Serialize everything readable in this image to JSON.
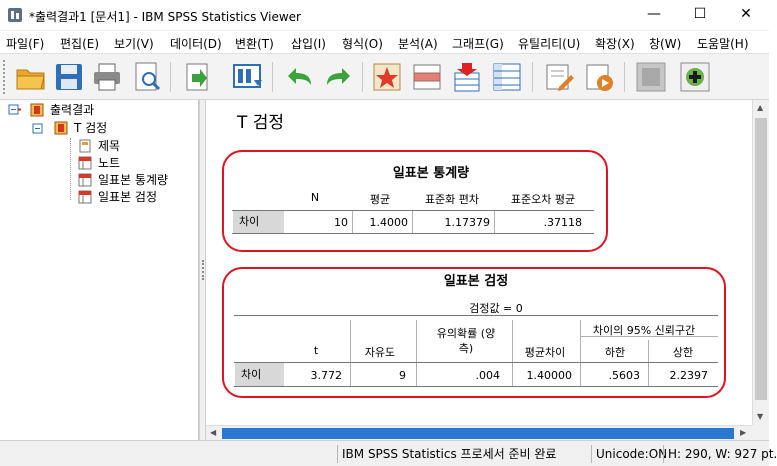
{
  "window": {
    "title": "*출력결과1 [문서1] - IBM SPSS Statistics Viewer",
    "minimize": "—",
    "maximize": "☐",
    "close": "✕"
  },
  "menu": [
    "파일(F)",
    "편집(E)",
    "보기(V)",
    "데이터(D)",
    "변환(T)",
    "삽입(I)",
    "형식(O)",
    "분석(A)",
    "그래프(G)",
    "유틸리티(U)",
    "확장(X)",
    "창(W)",
    "도움말(H)"
  ],
  "toolbar": {
    "icons": [
      "open-folder-icon",
      "save-icon",
      "print-icon",
      "print-preview-icon",
      "export-icon",
      "go-to-data-icon",
      "undo-icon",
      "redo-icon",
      "recall-dialog-icon",
      "go-to-case-icon",
      "variables-icon",
      "designate-window-icon",
      "promote-icon",
      "show-hide-icon",
      "create-icon"
    ]
  },
  "tree": {
    "root": "출력결과",
    "section": "T 검정",
    "items": [
      "제목",
      "노트",
      "일표본 통계량",
      "일표본 검정"
    ]
  },
  "content": {
    "heading": "T 검정"
  },
  "stats_table": {
    "title": "일표본 통계량",
    "headers": [
      "N",
      "평균",
      "표준화 편차",
      "표준오차 평균"
    ],
    "row_label": "차이",
    "values": [
      "10",
      "1.4000",
      "1.17379",
      ".37118"
    ]
  },
  "test_table": {
    "title": "일표본 검정",
    "subtitle": "검정값 = 0",
    "ci_header": "차이의 95% 신뢰구간",
    "headers": [
      "t",
      "자유도",
      "유의확률 (양측)",
      "평균차이",
      "하한",
      "상한"
    ],
    "header_sig_line1": "유의확률 (양",
    "header_sig_line2": "측)",
    "row_label": "차이",
    "values": [
      "3.772",
      "9",
      ".004",
      "1.40000",
      ".5603",
      "2.2397"
    ]
  },
  "status": {
    "processor": "IBM SPSS Statistics 프로세서 준비 완료",
    "unicode": "Unicode:ON",
    "size": "H: 290, W: 927 pt."
  },
  "colors": {
    "highlight_oval": "#e0141e",
    "scroll_thumb": "#2a78d2",
    "row_header_bg": "#d8d8d8"
  }
}
